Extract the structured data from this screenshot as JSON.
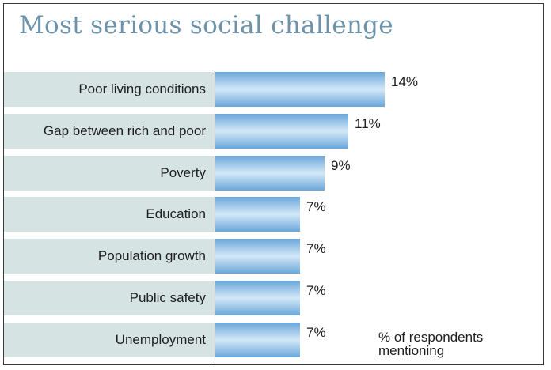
{
  "chart_data": {
    "type": "bar",
    "orientation": "horizontal",
    "title": "Most serious social challenge",
    "categories": [
      "Poor  living conditions",
      "Gap between rich and poor",
      "Poverty",
      "Education",
      "Population growth",
      "Public safety",
      "Unemployment"
    ],
    "values": [
      14,
      11,
      9,
      7,
      7,
      7,
      7
    ],
    "value_labels": [
      "14%",
      "11%",
      "9%",
      "7%",
      "7%",
      "7%",
      "7%"
    ],
    "unit_note": [
      "% of respondents",
      "mentioning"
    ],
    "xlim": [
      0,
      15
    ],
    "grid": false,
    "colors": {
      "title": "#6d93ab",
      "bar": "#6aa6d9",
      "label_band": "#d5e4e3"
    }
  }
}
